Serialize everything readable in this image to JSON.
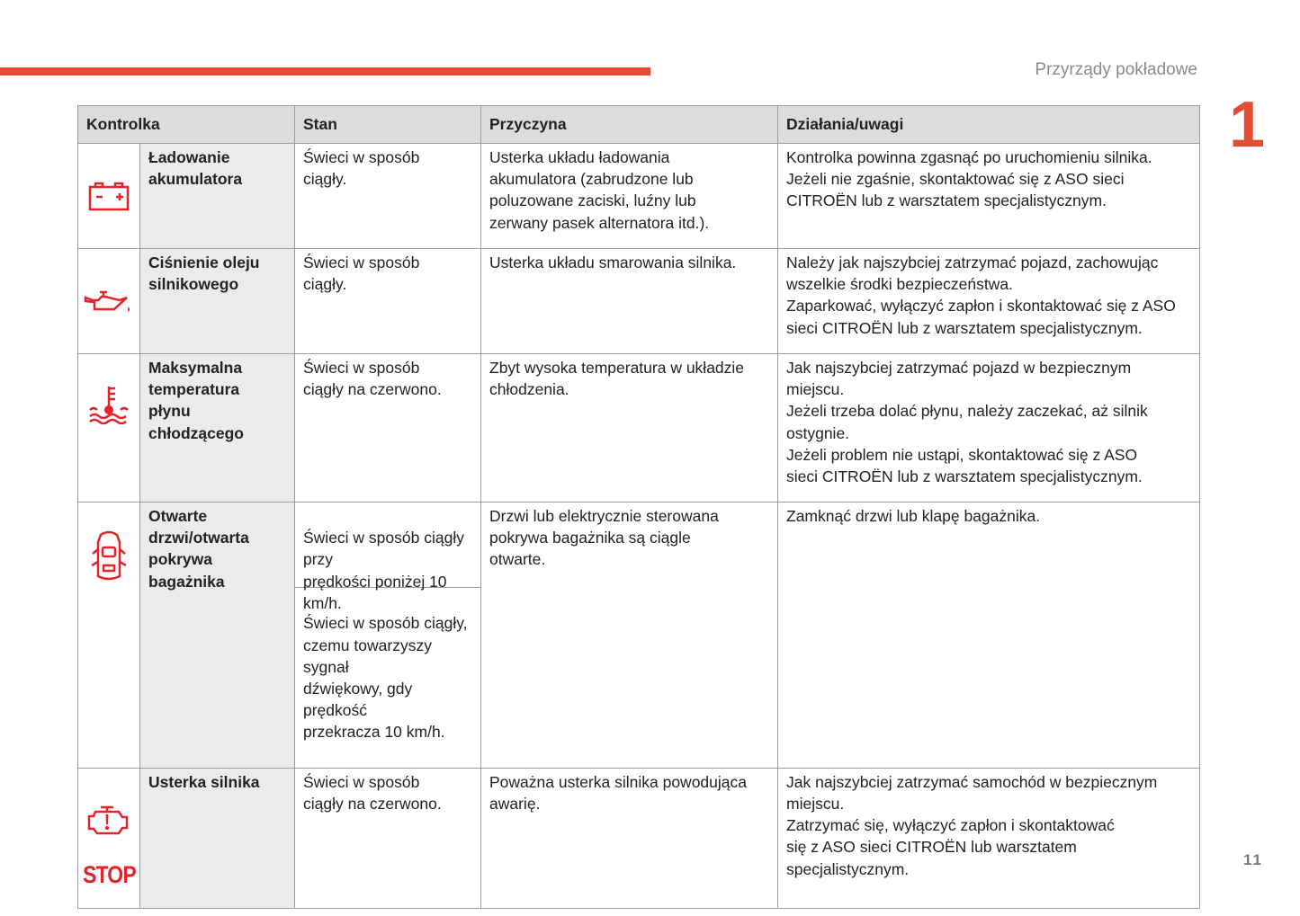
{
  "header": {
    "section_title": "Przyrządy pokładowe",
    "chapter_number": "1",
    "page_number": "11",
    "accent_color": "#e34b33"
  },
  "table": {
    "columns": [
      "Kontrolka",
      "Stan",
      "Przyczyna",
      "Działania/uwagi"
    ],
    "rows": [
      {
        "icon": "battery-icon",
        "name": "Ładowanie\nakumulatora",
        "state": "Świeci w sposób\nciągły.",
        "cause": "Usterka układu ładowania\nakumulatora (zabrudzone lub\npoluzowane zaciski, luźny lub\nzerwany pasek alternatora itd.).",
        "action": "Kontrolka powinna zgasnąć po uruchomieniu silnika.\nJeżeli nie zgaśnie, skontaktować się z ASO sieci\nCITROËN lub z warsztatem specjalistycznym."
      },
      {
        "icon": "oil-can-icon",
        "name": "Ciśnienie oleju\nsilnikowego",
        "state": "Świeci w sposób\nciągły.",
        "cause": "Usterka układu smarowania silnika.",
        "action": "Należy jak najszybciej zatrzymać pojazd, zachowując\nwszelkie środki bezpieczeństwa.\nZaparkować, wyłączyć zapłon i skontaktować się z ASO\nsieci CITROËN lub z warsztatem specjalistycznym."
      },
      {
        "icon": "coolant-temperature-icon",
        "name": "Maksymalna\ntemperatura\npłynu\nchłodzącego",
        "state": "Świeci w sposób\nciągły na czerwono.",
        "cause": "Zbyt wysoka temperatura w układzie\nchłodzenia.",
        "action": "Jak najszybciej zatrzymać pojazd w bezpiecznym\nmiejscu.\nJeżeli trzeba dolać płynu, należy zaczekać, aż silnik\nostygnie.\nJeżeli problem nie ustąpi, skontaktować się z ASO\nsieci CITROËN lub z warsztatem specjalistycznym."
      },
      {
        "icon": "door-open-icon",
        "name": "Otwarte\ndrzwi/otwarta\npokrywa\nbagażnika",
        "state": "Świeci w sposób ciągły przy\nprędkości poniżej 10 km/h.",
        "state_2": "Świeci w sposób ciągły,\nczemu towarzyszy sygnał\ndźwiękowy, gdy prędkość\nprzekracza 10 km/h.",
        "cause": "Drzwi lub elektrycznie sterowana\npokrywa bagażnika są ciągle\notwarte.",
        "action": "Zamknąć drzwi lub klapę bagażnika."
      },
      {
        "icon": "engine-fault-stop-icon",
        "icon_text": "STOP",
        "name": "Usterka silnika",
        "state": "Świeci w sposób\nciągły na czerwono.",
        "cause": "Poważna usterka silnika powodująca\nawarię.",
        "action": "Jak najszybciej zatrzymać samochód w bezpiecznym\nmiejscu.\nZatrzymać się, wyłączyć zapłon i skontaktować\nsię z ASO sieci CITROËN lub warsztatem\nspecjalistycznym."
      }
    ]
  }
}
